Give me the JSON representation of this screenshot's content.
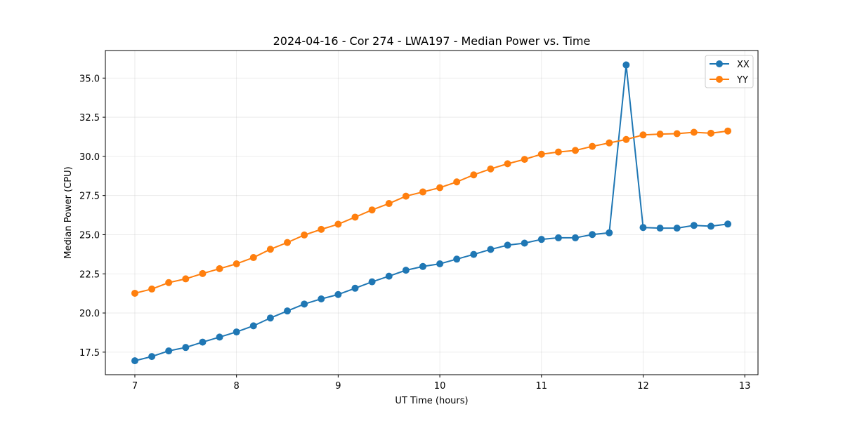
{
  "chart_data": {
    "type": "line",
    "title": "2024-04-16 - Cor 274 - LWA197 - Median Power vs. Time",
    "xlabel": "UT Time (hours)",
    "ylabel": "Median Power (CPU)",
    "xlim": [
      6.71,
      13.13
    ],
    "ylim": [
      16.06,
      36.76
    ],
    "xticks": [
      7,
      8,
      9,
      10,
      11,
      12,
      13
    ],
    "xtick_labels": [
      "7",
      "8",
      "9",
      "10",
      "11",
      "12",
      "13"
    ],
    "yticks": [
      17.5,
      20.0,
      22.5,
      25.0,
      27.5,
      30.0,
      32.5,
      35.0
    ],
    "ytick_labels": [
      "17.5",
      "20.0",
      "22.5",
      "25.0",
      "27.5",
      "30.0",
      "32.5",
      "35.0"
    ],
    "grid": true,
    "legend_position": "top-right",
    "x": [
      7.0,
      7.1667,
      7.3333,
      7.5,
      7.6667,
      7.8333,
      8.0,
      8.1667,
      8.3333,
      8.5,
      8.6667,
      8.8333,
      9.0,
      9.1667,
      9.3333,
      9.5,
      9.6667,
      9.8333,
      10.0,
      10.1667,
      10.3333,
      10.5,
      10.6667,
      10.8333,
      11.0,
      11.1667,
      11.3333,
      11.5,
      11.6667,
      11.8333,
      12.0,
      12.1667,
      12.3333,
      12.5,
      12.6667,
      12.8333
    ],
    "series": [
      {
        "name": "XX",
        "color": "#1f77b4",
        "values": [
          16.95,
          17.22,
          17.58,
          17.8,
          18.14,
          18.46,
          18.79,
          19.18,
          19.68,
          20.13,
          20.57,
          20.9,
          21.18,
          21.58,
          21.99,
          22.35,
          22.73,
          22.97,
          23.14,
          23.44,
          23.74,
          24.06,
          24.33,
          24.46,
          24.7,
          24.8,
          24.8,
          25.01,
          25.12,
          35.84,
          25.46,
          25.42,
          25.42,
          25.59,
          25.54,
          25.68
        ]
      },
      {
        "name": "YY",
        "color": "#ff7f0e",
        "values": [
          21.26,
          21.53,
          21.94,
          22.18,
          22.52,
          22.83,
          23.14,
          23.54,
          24.07,
          24.5,
          24.98,
          25.34,
          25.67,
          26.12,
          26.58,
          26.99,
          27.46,
          27.73,
          28.0,
          28.37,
          28.82,
          29.2,
          29.53,
          29.81,
          30.14,
          30.28,
          30.38,
          30.64,
          30.86,
          31.08,
          31.37,
          31.42,
          31.45,
          31.54,
          31.48,
          31.62
        ]
      }
    ]
  }
}
